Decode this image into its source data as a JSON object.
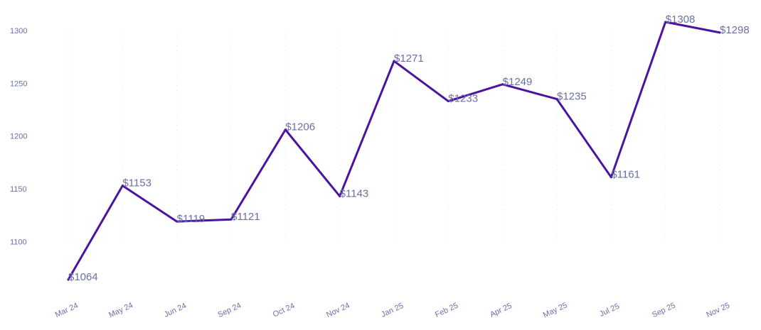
{
  "chart_data": {
    "type": "line",
    "title": "",
    "xlabel": "",
    "ylabel": "",
    "categories": [
      "Mar 24",
      "May 24",
      "Jun 24",
      "Sep 24",
      "Oct 24",
      "Nov 24",
      "Jan 25",
      "Feb 25",
      "Apr 25",
      "May 25",
      "Jul 25",
      "Sep 25",
      "Nov 25"
    ],
    "values": [
      1064,
      1153,
      1119,
      1121,
      1206,
      1143,
      1271,
      1233,
      1249,
      1235,
      1161,
      1308,
      1298
    ],
    "data_labels": [
      "$1064",
      "$1153",
      "$1119",
      "$1121",
      "$1206",
      "$1143",
      "$1271",
      "$1233",
      "$1249",
      "$1235",
      "$1161",
      "$1308",
      "$1298"
    ],
    "y_ticks": [
      1100,
      1150,
      1200,
      1250,
      1300
    ],
    "y_tick_labels": [
      "1100",
      "1150",
      "1200",
      "1250",
      "1300"
    ],
    "ylim": [
      1064,
      1308
    ],
    "grid": true,
    "legend": "none",
    "colors": {
      "line": "#4a14a0",
      "labels": "#6b6fa8",
      "grid": "#e4e4ea"
    }
  }
}
